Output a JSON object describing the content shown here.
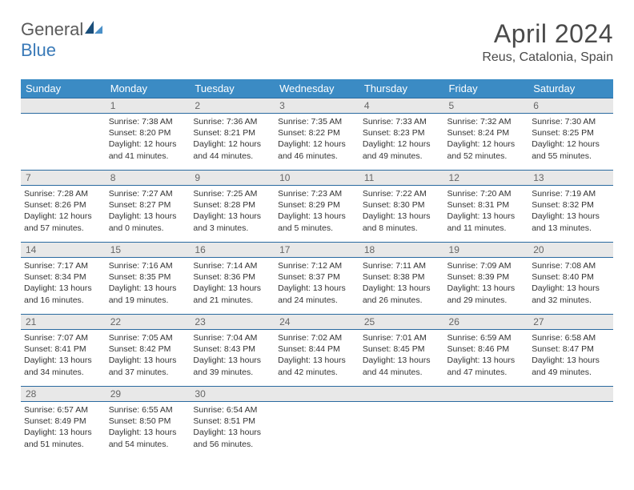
{
  "brand": {
    "part1": "General",
    "part2": "Blue"
  },
  "title": "April 2024",
  "location": "Reus, Catalonia, Spain",
  "colors": {
    "header_bg": "#3b8bc4",
    "header_text": "#ffffff",
    "daynum_bg": "#e8e8e8",
    "daynum_border": "#2a6aa0",
    "text": "#333333",
    "logo_gray": "#5a5a5a",
    "logo_blue": "#3a7ab8",
    "sail_dark": "#1a4e7a",
    "sail_light": "#4a90c8"
  },
  "typography": {
    "title_fontsize": 32,
    "location_fontsize": 16,
    "weekday_fontsize": 13,
    "daynum_fontsize": 12,
    "cell_fontsize": 10.5
  },
  "weekdays": [
    "Sunday",
    "Monday",
    "Tuesday",
    "Wednesday",
    "Thursday",
    "Friday",
    "Saturday"
  ],
  "weeks": [
    [
      null,
      {
        "n": "1",
        "sr": "7:38 AM",
        "ss": "8:20 PM",
        "dl": "12 hours and 41 minutes."
      },
      {
        "n": "2",
        "sr": "7:36 AM",
        "ss": "8:21 PM",
        "dl": "12 hours and 44 minutes."
      },
      {
        "n": "3",
        "sr": "7:35 AM",
        "ss": "8:22 PM",
        "dl": "12 hours and 46 minutes."
      },
      {
        "n": "4",
        "sr": "7:33 AM",
        "ss": "8:23 PM",
        "dl": "12 hours and 49 minutes."
      },
      {
        "n": "5",
        "sr": "7:32 AM",
        "ss": "8:24 PM",
        "dl": "12 hours and 52 minutes."
      },
      {
        "n": "6",
        "sr": "7:30 AM",
        "ss": "8:25 PM",
        "dl": "12 hours and 55 minutes."
      }
    ],
    [
      {
        "n": "7",
        "sr": "7:28 AM",
        "ss": "8:26 PM",
        "dl": "12 hours and 57 minutes."
      },
      {
        "n": "8",
        "sr": "7:27 AM",
        "ss": "8:27 PM",
        "dl": "13 hours and 0 minutes."
      },
      {
        "n": "9",
        "sr": "7:25 AM",
        "ss": "8:28 PM",
        "dl": "13 hours and 3 minutes."
      },
      {
        "n": "10",
        "sr": "7:23 AM",
        "ss": "8:29 PM",
        "dl": "13 hours and 5 minutes."
      },
      {
        "n": "11",
        "sr": "7:22 AM",
        "ss": "8:30 PM",
        "dl": "13 hours and 8 minutes."
      },
      {
        "n": "12",
        "sr": "7:20 AM",
        "ss": "8:31 PM",
        "dl": "13 hours and 11 minutes."
      },
      {
        "n": "13",
        "sr": "7:19 AM",
        "ss": "8:32 PM",
        "dl": "13 hours and 13 minutes."
      }
    ],
    [
      {
        "n": "14",
        "sr": "7:17 AM",
        "ss": "8:34 PM",
        "dl": "13 hours and 16 minutes."
      },
      {
        "n": "15",
        "sr": "7:16 AM",
        "ss": "8:35 PM",
        "dl": "13 hours and 19 minutes."
      },
      {
        "n": "16",
        "sr": "7:14 AM",
        "ss": "8:36 PM",
        "dl": "13 hours and 21 minutes."
      },
      {
        "n": "17",
        "sr": "7:12 AM",
        "ss": "8:37 PM",
        "dl": "13 hours and 24 minutes."
      },
      {
        "n": "18",
        "sr": "7:11 AM",
        "ss": "8:38 PM",
        "dl": "13 hours and 26 minutes."
      },
      {
        "n": "19",
        "sr": "7:09 AM",
        "ss": "8:39 PM",
        "dl": "13 hours and 29 minutes."
      },
      {
        "n": "20",
        "sr": "7:08 AM",
        "ss": "8:40 PM",
        "dl": "13 hours and 32 minutes."
      }
    ],
    [
      {
        "n": "21",
        "sr": "7:07 AM",
        "ss": "8:41 PM",
        "dl": "13 hours and 34 minutes."
      },
      {
        "n": "22",
        "sr": "7:05 AM",
        "ss": "8:42 PM",
        "dl": "13 hours and 37 minutes."
      },
      {
        "n": "23",
        "sr": "7:04 AM",
        "ss": "8:43 PM",
        "dl": "13 hours and 39 minutes."
      },
      {
        "n": "24",
        "sr": "7:02 AM",
        "ss": "8:44 PM",
        "dl": "13 hours and 42 minutes."
      },
      {
        "n": "25",
        "sr": "7:01 AM",
        "ss": "8:45 PM",
        "dl": "13 hours and 44 minutes."
      },
      {
        "n": "26",
        "sr": "6:59 AM",
        "ss": "8:46 PM",
        "dl": "13 hours and 47 minutes."
      },
      {
        "n": "27",
        "sr": "6:58 AM",
        "ss": "8:47 PM",
        "dl": "13 hours and 49 minutes."
      }
    ],
    [
      {
        "n": "28",
        "sr": "6:57 AM",
        "ss": "8:49 PM",
        "dl": "13 hours and 51 minutes."
      },
      {
        "n": "29",
        "sr": "6:55 AM",
        "ss": "8:50 PM",
        "dl": "13 hours and 54 minutes."
      },
      {
        "n": "30",
        "sr": "6:54 AM",
        "ss": "8:51 PM",
        "dl": "13 hours and 56 minutes."
      },
      null,
      null,
      null,
      null
    ]
  ],
  "labels": {
    "sunrise": "Sunrise:",
    "sunset": "Sunset:",
    "daylight": "Daylight:"
  }
}
